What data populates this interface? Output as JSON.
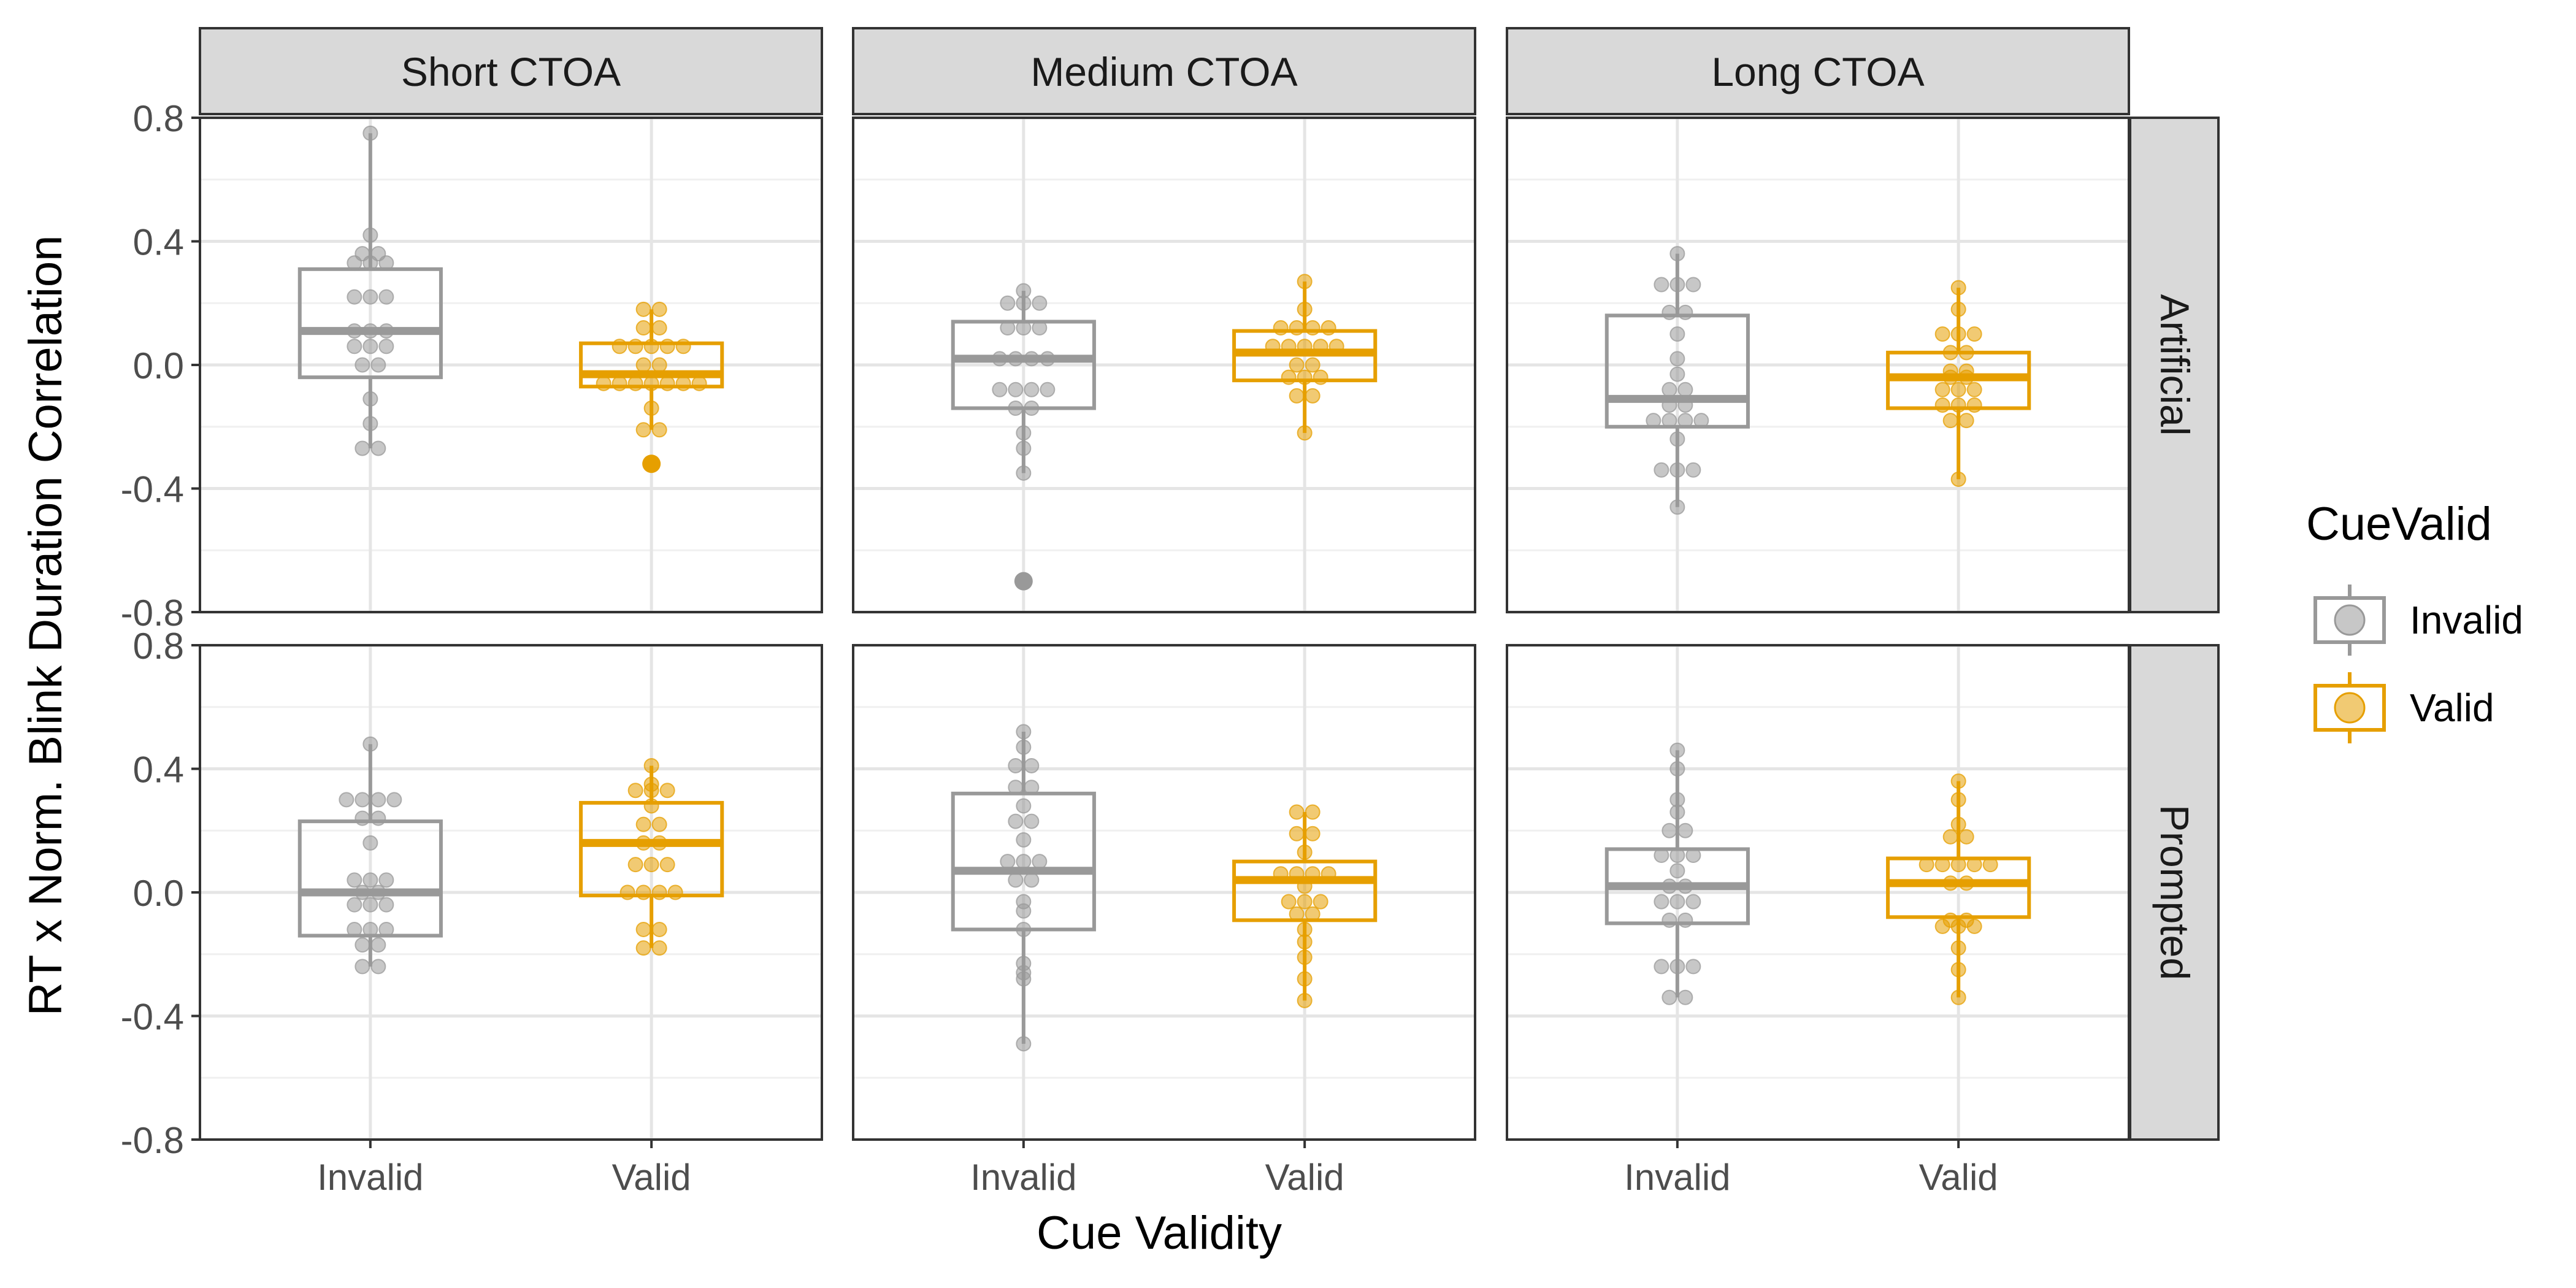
{
  "chart_data": {
    "type": "boxplot",
    "ylabel": "RT x Norm. Blink Duration Correlation",
    "xlabel": "Cue Validity",
    "ylim": [
      -0.8,
      0.8
    ],
    "y_ticks": [
      "-0.8",
      "-0.4",
      "0.0",
      "0.4",
      "0.8"
    ],
    "y_tick_values": [
      -0.8,
      -0.4,
      0.0,
      0.4,
      0.8
    ],
    "categories": [
      "Invalid",
      "Valid"
    ],
    "column_facets": [
      "Short CTOA",
      "Medium CTOA",
      "Long CTOA"
    ],
    "row_facets": [
      "Artificial",
      "Prompted"
    ],
    "legend": {
      "title": "CueValid",
      "position": "right",
      "items": [
        {
          "label": "Invalid",
          "color": "#999999"
        },
        {
          "label": "Valid",
          "color": "#E69F00"
        }
      ]
    },
    "grid": true,
    "panels": [
      {
        "row": "Artificial",
        "col": "Short CTOA",
        "boxes": [
          {
            "category": "Invalid",
            "q1": -0.04,
            "median": 0.11,
            "q3": 0.31,
            "whisker_low": -0.27,
            "whisker_high": 0.75,
            "outliers": [],
            "points": [
              0.75,
              0.42,
              0.36,
              0.36,
              0.33,
              0.33,
              0.33,
              0.22,
              0.22,
              0.22,
              0.11,
              0.11,
              0.11,
              0.06,
              0.06,
              0.06,
              0.0,
              0.0,
              -0.11,
              -0.19,
              -0.27,
              -0.27
            ]
          },
          {
            "category": "Valid",
            "q1": -0.07,
            "median": -0.03,
            "q3": 0.07,
            "whisker_low": -0.21,
            "whisker_high": 0.18,
            "outliers": [
              -0.32
            ],
            "points": [
              0.18,
              0.18,
              0.12,
              0.12,
              0.06,
              0.06,
              0.06,
              0.06,
              0.06,
              0.0,
              0.0,
              -0.06,
              -0.06,
              -0.06,
              -0.06,
              -0.06,
              -0.06,
              -0.06,
              -0.14,
              -0.21,
              -0.21
            ]
          }
        ]
      },
      {
        "row": "Artificial",
        "col": "Medium CTOA",
        "boxes": [
          {
            "category": "Invalid",
            "q1": -0.14,
            "median": 0.02,
            "q3": 0.14,
            "whisker_low": -0.35,
            "whisker_high": 0.24,
            "outliers": [
              -0.7
            ],
            "points": [
              0.24,
              0.2,
              0.2,
              0.2,
              0.12,
              0.12,
              0.12,
              0.02,
              0.02,
              0.02,
              0.02,
              -0.08,
              -0.08,
              -0.08,
              -0.08,
              -0.14,
              -0.14,
              -0.22,
              -0.27,
              -0.35
            ]
          },
          {
            "category": "Valid",
            "q1": -0.05,
            "median": 0.04,
            "q3": 0.11,
            "whisker_low": -0.22,
            "whisker_high": 0.27,
            "outliers": [],
            "points": [
              0.27,
              0.18,
              0.12,
              0.12,
              0.12,
              0.12,
              0.06,
              0.06,
              0.06,
              0.06,
              0.06,
              0.0,
              0.0,
              -0.04,
              -0.04,
              -0.04,
              -0.1,
              -0.1,
              -0.22
            ]
          }
        ]
      },
      {
        "row": "Artificial",
        "col": "Long CTOA",
        "boxes": [
          {
            "category": "Invalid",
            "q1": -0.2,
            "median": -0.11,
            "q3": 0.16,
            "whisker_low": -0.46,
            "whisker_high": 0.36,
            "outliers": [],
            "points": [
              0.36,
              0.26,
              0.26,
              0.26,
              0.17,
              0.17,
              0.1,
              0.02,
              -0.03,
              -0.08,
              -0.08,
              -0.13,
              -0.13,
              -0.18,
              -0.18,
              -0.18,
              -0.18,
              -0.24,
              -0.34,
              -0.34,
              -0.34,
              -0.46
            ]
          },
          {
            "category": "Valid",
            "q1": -0.14,
            "median": -0.04,
            "q3": 0.04,
            "whisker_low": -0.37,
            "whisker_high": 0.25,
            "outliers": [],
            "points": [
              0.25,
              0.18,
              0.1,
              0.1,
              0.1,
              0.04,
              0.04,
              -0.02,
              -0.02,
              -0.04,
              -0.04,
              -0.08,
              -0.08,
              -0.08,
              -0.13,
              -0.13,
              -0.13,
              -0.18,
              -0.18,
              -0.37
            ]
          }
        ]
      },
      {
        "row": "Prompted",
        "col": "Short CTOA",
        "boxes": [
          {
            "category": "Invalid",
            "q1": -0.14,
            "median": 0.0,
            "q3": 0.23,
            "whisker_low": -0.24,
            "whisker_high": 0.48,
            "outliers": [],
            "points": [
              0.48,
              0.3,
              0.3,
              0.3,
              0.3,
              0.24,
              0.24,
              0.16,
              0.04,
              0.04,
              0.04,
              0.0,
              0.0,
              -0.04,
              -0.04,
              -0.04,
              -0.12,
              -0.12,
              -0.12,
              -0.17,
              -0.17,
              -0.24,
              -0.24
            ]
          },
          {
            "category": "Valid",
            "q1": -0.01,
            "median": 0.16,
            "q3": 0.29,
            "whisker_low": -0.18,
            "whisker_high": 0.41,
            "outliers": [],
            "points": [
              0.41,
              0.35,
              0.33,
              0.33,
              0.33,
              0.28,
              0.22,
              0.22,
              0.16,
              0.16,
              0.09,
              0.09,
              0.09,
              0.0,
              0.0,
              0.0,
              0.0,
              -0.12,
              -0.12,
              -0.18,
              -0.18
            ]
          }
        ]
      },
      {
        "row": "Prompted",
        "col": "Medium CTOA",
        "boxes": [
          {
            "category": "Invalid",
            "q1": -0.12,
            "median": 0.07,
            "q3": 0.32,
            "whisker_low": -0.49,
            "whisker_high": 0.52,
            "outliers": [],
            "points": [
              0.52,
              0.47,
              0.41,
              0.41,
              0.34,
              0.34,
              0.28,
              0.23,
              0.23,
              0.17,
              0.1,
              0.1,
              0.1,
              0.04,
              0.04,
              -0.03,
              -0.06,
              -0.12,
              -0.23,
              -0.26,
              -0.28,
              -0.49
            ]
          },
          {
            "category": "Valid",
            "q1": -0.09,
            "median": 0.04,
            "q3": 0.1,
            "whisker_low": -0.35,
            "whisker_high": 0.26,
            "outliers": [],
            "points": [
              0.26,
              0.26,
              0.19,
              0.19,
              0.13,
              0.06,
              0.06,
              0.06,
              0.06,
              0.02,
              -0.03,
              -0.03,
              -0.03,
              -0.07,
              -0.07,
              -0.12,
              -0.16,
              -0.21,
              -0.28,
              -0.35
            ]
          }
        ]
      },
      {
        "row": "Prompted",
        "col": "Long CTOA",
        "boxes": [
          {
            "category": "Invalid",
            "q1": -0.1,
            "median": 0.02,
            "q3": 0.14,
            "whisker_low": -0.34,
            "whisker_high": 0.46,
            "outliers": [],
            "points": [
              0.46,
              0.4,
              0.3,
              0.26,
              0.2,
              0.2,
              0.12,
              0.12,
              0.12,
              0.07,
              0.02,
              0.02,
              -0.03,
              -0.03,
              -0.03,
              -0.09,
              -0.09,
              -0.24,
              -0.24,
              -0.24,
              -0.34,
              -0.34
            ]
          },
          {
            "category": "Valid",
            "q1": -0.08,
            "median": 0.03,
            "q3": 0.11,
            "whisker_low": -0.34,
            "whisker_high": 0.36,
            "outliers": [],
            "points": [
              0.36,
              0.3,
              0.22,
              0.18,
              0.18,
              0.09,
              0.09,
              0.09,
              0.09,
              0.09,
              0.03,
              0.03,
              -0.09,
              -0.09,
              -0.11,
              -0.11,
              -0.11,
              -0.18,
              -0.25,
              -0.34
            ]
          }
        ]
      }
    ]
  }
}
